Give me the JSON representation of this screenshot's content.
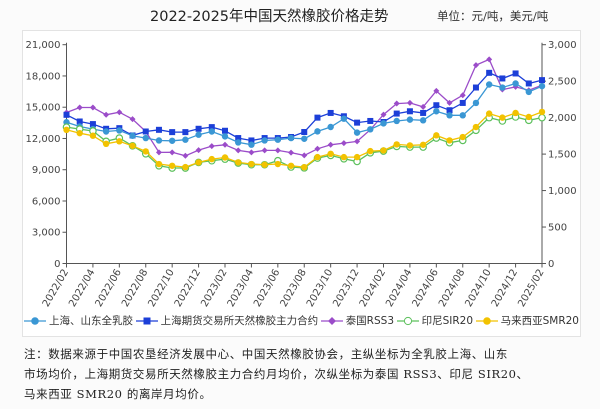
{
  "title": "2022-2025年中国天然橡胶价格走势",
  "unit": "单位：元/吨，美元/吨",
  "footnote": [
    "注：数据来源于中国农垦经济发展中心、中国天然橡胶协会，主纵坐标为全乳胶上海、山东",
    "市场均价，上海期货交易所天然橡胶主力合约月均价，次纵坐标为泰国 RSS3、印尼 SIR20、",
    "马来西亚 SMR20 的离岸月均价。"
  ],
  "chart_data": {
    "type": "line",
    "x": [
      "2022/02",
      "2022/03",
      "2022/04",
      "2022/05",
      "2022/06",
      "2022/07",
      "2022/08",
      "2022/09",
      "2022/10",
      "2022/11",
      "2022/12",
      "2023/01",
      "2023/02",
      "2023/03",
      "2023/04",
      "2023/05",
      "2023/06",
      "2023/07",
      "2023/08",
      "2023/09",
      "2023/10",
      "2023/11",
      "2023/12",
      "2024/01",
      "2024/02",
      "2024/03",
      "2024/04",
      "2024/05",
      "2024/06",
      "2024/07",
      "2024/08",
      "2024/09",
      "2024/10",
      "2024/11",
      "2024/12",
      "2025/01",
      "2025/02"
    ],
    "x_tick_labels": [
      "2022/02",
      "2022/04",
      "2022/06",
      "2022/08",
      "2022/10",
      "2022/12",
      "2023/02",
      "2023/04",
      "2023/06",
      "2023/08",
      "2023/10",
      "2023/12",
      "2024/02",
      "2024/04",
      "2024/06",
      "2024/08",
      "2024/10",
      "2024/12",
      "2025/02"
    ],
    "y_left": {
      "lim": [
        0,
        21000
      ],
      "ticks": [
        "0",
        "3,000",
        "6,000",
        "9,000",
        "12,000",
        "15,000",
        "18,000",
        "21,000"
      ]
    },
    "y_right": {
      "lim": [
        0,
        3000
      ],
      "ticks": [
        "0",
        "500",
        "1,000",
        "1,500",
        "2,000",
        "2,500",
        "3,000"
      ]
    },
    "grid": false,
    "legend_position": "bottom",
    "series": [
      {
        "name": "上海、山东全乳胶",
        "axis": "left",
        "marker": "circle",
        "color": "#3a97d4",
        "values": [
          13560,
          13150,
          12900,
          12670,
          12770,
          12260,
          12040,
          11810,
          11780,
          11880,
          12360,
          12670,
          12200,
          11620,
          11400,
          11810,
          11880,
          12040,
          11970,
          12680,
          13100,
          13900,
          12560,
          12880,
          13450,
          13680,
          13810,
          13740,
          14610,
          14220,
          14220,
          15410,
          17180,
          16890,
          17280,
          16470,
          17020
        ]
      },
      {
        "name": "上海期货交易所天然橡胶主力合约",
        "axis": "left",
        "marker": "square",
        "color": "#1c3fd8",
        "values": [
          14270,
          13630,
          13380,
          12930,
          12990,
          12290,
          12670,
          12830,
          12610,
          12610,
          12930,
          13090,
          12740,
          12040,
          11810,
          12040,
          12040,
          12140,
          12620,
          14000,
          14450,
          14130,
          13520,
          13680,
          13580,
          14390,
          14610,
          14450,
          15190,
          14710,
          15410,
          16890,
          18300,
          17760,
          18240,
          17280,
          17600
        ]
      },
      {
        "name": "泰国RSS3",
        "axis": "right",
        "marker": "diamond",
        "color": "#9b4cc9",
        "values": [
          2070,
          2139,
          2139,
          2039,
          2074,
          1979,
          1810,
          1523,
          1524,
          1477,
          1555,
          1610,
          1628,
          1551,
          1524,
          1551,
          1551,
          1520,
          1482,
          1573,
          1628,
          1651,
          1674,
          1835,
          2041,
          2193,
          2202,
          2147,
          2367,
          2202,
          2307,
          2720,
          2798,
          2385,
          2422,
          2376,
          2445
        ]
      },
      {
        "name": "印尼SIR20",
        "axis": "right",
        "marker": "open-circle",
        "color": "#5cc05c",
        "values": [
          1870,
          1843,
          1817,
          1675,
          1720,
          1614,
          1504,
          1340,
          1309,
          1309,
          1386,
          1409,
          1431,
          1377,
          1354,
          1354,
          1409,
          1323,
          1311,
          1445,
          1482,
          1436,
          1399,
          1518,
          1541,
          1605,
          1596,
          1596,
          1720,
          1656,
          1688,
          1826,
          2000,
          1954,
          2009,
          1963,
          2000
        ]
      },
      {
        "name": "马来西亚SMR20",
        "axis": "right",
        "marker": "circle",
        "color": "#f2c200",
        "values": [
          1833,
          1787,
          1752,
          1641,
          1675,
          1614,
          1537,
          1364,
          1340,
          1322,
          1386,
          1431,
          1454,
          1386,
          1364,
          1354,
          1364,
          1340,
          1320,
          1459,
          1504,
          1459,
          1459,
          1541,
          1550,
          1633,
          1619,
          1628,
          1757,
          1688,
          1734,
          1871,
          2055,
          2000,
          2064,
          2009,
          2078
        ]
      }
    ]
  }
}
